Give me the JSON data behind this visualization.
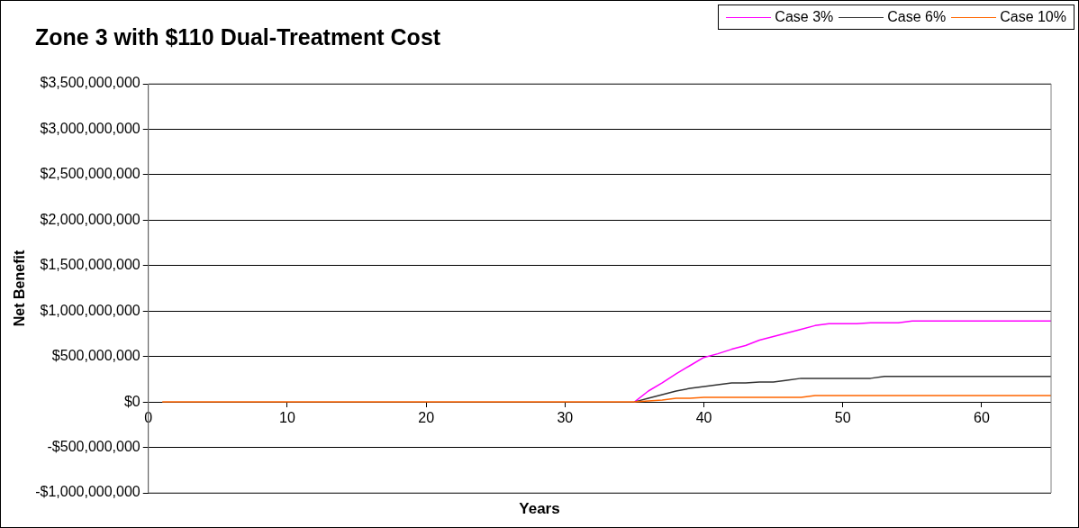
{
  "chart_data": {
    "type": "line",
    "title": "Zone 3 with $110 Dual-Treatment Cost",
    "xlabel": "Years",
    "ylabel": "Net Benefit",
    "x": [
      1,
      2,
      3,
      4,
      5,
      6,
      7,
      8,
      9,
      10,
      11,
      12,
      13,
      14,
      15,
      16,
      17,
      18,
      19,
      20,
      21,
      22,
      23,
      24,
      25,
      26,
      27,
      28,
      29,
      30,
      31,
      32,
      33,
      34,
      35,
      36,
      37,
      38,
      39,
      40,
      41,
      42,
      43,
      44,
      45,
      46,
      47,
      48,
      49,
      50,
      51,
      52,
      53,
      54,
      55,
      56,
      57,
      58,
      59,
      60,
      61,
      62,
      63,
      64,
      65
    ],
    "series": [
      {
        "name": "Case 3%",
        "color": "#ff00ff",
        "values": [
          null,
          null,
          null,
          null,
          null,
          null,
          null,
          null,
          null,
          null,
          null,
          null,
          null,
          null,
          null,
          null,
          null,
          null,
          null,
          null,
          null,
          null,
          null,
          null,
          null,
          null,
          null,
          null,
          null,
          null,
          null,
          null,
          null,
          null,
          0,
          120000000,
          210000000,
          310000000,
          400000000,
          490000000,
          530000000,
          580000000,
          620000000,
          680000000,
          720000000,
          760000000,
          800000000,
          840000000,
          860000000,
          860000000,
          860000000,
          870000000,
          870000000,
          870000000,
          890000000,
          890000000,
          890000000,
          890000000,
          890000000,
          890000000,
          890000000,
          890000000,
          890000000,
          890000000,
          890000000
        ]
      },
      {
        "name": "Case 6%",
        "color": "#333333",
        "values": [
          null,
          null,
          null,
          null,
          null,
          null,
          null,
          null,
          null,
          null,
          null,
          null,
          null,
          null,
          null,
          null,
          null,
          null,
          null,
          null,
          null,
          null,
          null,
          null,
          null,
          null,
          null,
          null,
          null,
          null,
          null,
          null,
          null,
          null,
          0,
          40000000,
          80000000,
          120000000,
          150000000,
          170000000,
          190000000,
          210000000,
          210000000,
          220000000,
          220000000,
          240000000,
          260000000,
          260000000,
          260000000,
          260000000,
          260000000,
          260000000,
          280000000,
          280000000,
          280000000,
          280000000,
          280000000,
          280000000,
          280000000,
          280000000,
          280000000,
          280000000,
          280000000,
          280000000,
          280000000
        ]
      },
      {
        "name": "Case 10%",
        "color": "#ff6600",
        "values": [
          0,
          0,
          0,
          0,
          0,
          0,
          0,
          0,
          0,
          0,
          0,
          0,
          0,
          0,
          0,
          0,
          0,
          0,
          0,
          0,
          0,
          0,
          0,
          0,
          0,
          0,
          0,
          0,
          0,
          0,
          0,
          0,
          0,
          0,
          0,
          10000000,
          20000000,
          40000000,
          40000000,
          50000000,
          50000000,
          50000000,
          50000000,
          50000000,
          50000000,
          50000000,
          50000000,
          70000000,
          70000000,
          70000000,
          70000000,
          70000000,
          70000000,
          70000000,
          70000000,
          70000000,
          70000000,
          70000000,
          70000000,
          70000000,
          70000000,
          70000000,
          70000000,
          70000000,
          70000000
        ]
      }
    ],
    "xlim": [
      0,
      65
    ],
    "xticks": [
      0,
      10,
      20,
      30,
      40,
      50,
      60
    ],
    "ylim": [
      -1000000000,
      3500000000
    ],
    "yticks": [
      {
        "value": -1000000000,
        "label": "-$1,000,000,000"
      },
      {
        "value": -500000000,
        "label": "-$500,000,000"
      },
      {
        "value": 0,
        "label": "$0"
      },
      {
        "value": 500000000,
        "label": "$500,000,000"
      },
      {
        "value": 1000000000,
        "label": "$1,000,000,000"
      },
      {
        "value": 1500000000,
        "label": "$1,500,000,000"
      },
      {
        "value": 2000000000,
        "label": "$2,000,000,000"
      },
      {
        "value": 2500000000,
        "label": "$2,500,000,000"
      },
      {
        "value": 3000000000,
        "label": "$3,000,000,000"
      },
      {
        "value": 3500000000,
        "label": "$3,500,000,000"
      }
    ],
    "grid": "y",
    "legend": "top right",
    "marker": "none",
    "line_style": "solid"
  }
}
